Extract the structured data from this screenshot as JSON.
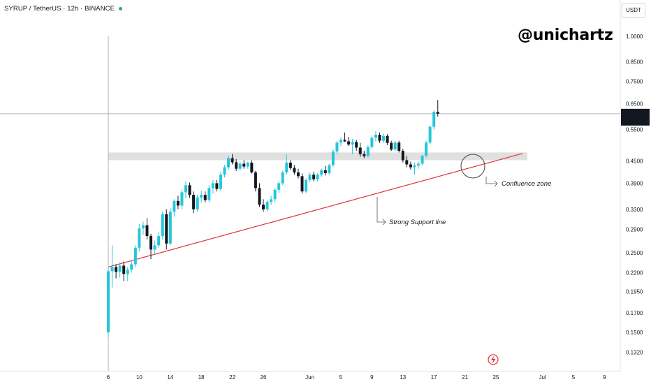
{
  "header": {
    "symbol": "SYRUP / TetherUS · 12h · BINANCE",
    "status_color": "#26a69a"
  },
  "brand": "@unichartz",
  "price_axis": {
    "unit": "USDT"
  },
  "colors": {
    "up": "#26c6da",
    "down": "#131722",
    "support": "#e0323c",
    "zone": "#d6d6d6",
    "crosshair": "#9aa0a6"
  },
  "last_price": {
    "value": "0.6088",
    "timer": "08:32:28"
  },
  "annotations": {
    "support_label": "Strong Support line",
    "confluence_label": "Confluence zone"
  },
  "chart_data": {
    "type": "candlestick",
    "title": "SYRUP / TetherUS · 12h · BINANCE",
    "y_scale": "log",
    "ylim": [
      0.125,
      1.08
    ],
    "y_ticks": [
      1.0,
      0.85,
      0.75,
      0.65,
      0.55,
      0.45,
      0.39,
      0.33,
      0.29,
      0.25,
      0.22,
      0.195,
      0.17,
      0.15,
      0.132
    ],
    "y_tick_labels": [
      "1.0000",
      "0.8500",
      "0.7500",
      "0.6500",
      "0.5500",
      "0.4500",
      "0.3900",
      "0.3300",
      "0.2900",
      "0.2500",
      "0.2200",
      "0.1950",
      "0.1700",
      "0.1500",
      "0.1320"
    ],
    "x_ticks": [
      {
        "label": "6",
        "index": 0
      },
      {
        "label": "10",
        "index": 8
      },
      {
        "label": "14",
        "index": 16
      },
      {
        "label": "18",
        "index": 24
      },
      {
        "label": "22",
        "index": 32
      },
      {
        "label": "26",
        "index": 40
      },
      {
        "label": "Jun",
        "index": 52
      },
      {
        "label": "5",
        "index": 60
      },
      {
        "label": "9",
        "index": 68
      },
      {
        "label": "13",
        "index": 76
      },
      {
        "label": "17",
        "index": 84
      },
      {
        "label": "21",
        "index": 92
      },
      {
        "label": "25",
        "index": 100
      },
      {
        "label": "Jul",
        "index": 112
      },
      {
        "label": "5",
        "index": 120
      },
      {
        "label": "9",
        "index": 128
      }
    ],
    "candles": [
      [
        0.15,
        0.225,
        0.145,
        0.222
      ],
      [
        0.222,
        0.262,
        0.2,
        0.228
      ],
      [
        0.228,
        0.232,
        0.212,
        0.221
      ],
      [
        0.221,
        0.235,
        0.213,
        0.23
      ],
      [
        0.23,
        0.236,
        0.208,
        0.218
      ],
      [
        0.218,
        0.228,
        0.208,
        0.224
      ],
      [
        0.224,
        0.238,
        0.22,
        0.232
      ],
      [
        0.232,
        0.262,
        0.228,
        0.258
      ],
      [
        0.258,
        0.3,
        0.252,
        0.292
      ],
      [
        0.292,
        0.305,
        0.28,
        0.298
      ],
      [
        0.298,
        0.312,
        0.272,
        0.278
      ],
      [
        0.278,
        0.282,
        0.24,
        0.255
      ],
      [
        0.255,
        0.27,
        0.248,
        0.262
      ],
      [
        0.262,
        0.285,
        0.258,
        0.278
      ],
      [
        0.278,
        0.325,
        0.272,
        0.32
      ],
      [
        0.32,
        0.33,
        0.255,
        0.265
      ],
      [
        0.265,
        0.332,
        0.262,
        0.325
      ],
      [
        0.325,
        0.352,
        0.315,
        0.348
      ],
      [
        0.348,
        0.36,
        0.33,
        0.338
      ],
      [
        0.338,
        0.375,
        0.33,
        0.368
      ],
      [
        0.368,
        0.395,
        0.355,
        0.385
      ],
      [
        0.385,
        0.392,
        0.355,
        0.362
      ],
      [
        0.362,
        0.37,
        0.322,
        0.33
      ],
      [
        0.33,
        0.362,
        0.325,
        0.356
      ],
      [
        0.356,
        0.372,
        0.345,
        0.362
      ],
      [
        0.362,
        0.37,
        0.345,
        0.35
      ],
      [
        0.35,
        0.385,
        0.345,
        0.378
      ],
      [
        0.378,
        0.398,
        0.365,
        0.39
      ],
      [
        0.39,
        0.398,
        0.37,
        0.376
      ],
      [
        0.376,
        0.42,
        0.372,
        0.412
      ],
      [
        0.412,
        0.438,
        0.405,
        0.432
      ],
      [
        0.432,
        0.465,
        0.425,
        0.458
      ],
      [
        0.458,
        0.47,
        0.44,
        0.446
      ],
      [
        0.446,
        0.455,
        0.422,
        0.428
      ],
      [
        0.428,
        0.448,
        0.422,
        0.442
      ],
      [
        0.442,
        0.452,
        0.428,
        0.434
      ],
      [
        0.434,
        0.448,
        0.428,
        0.445
      ],
      [
        0.445,
        0.452,
        0.415,
        0.418
      ],
      [
        0.418,
        0.422,
        0.37,
        0.378
      ],
      [
        0.378,
        0.39,
        0.335,
        0.34
      ],
      [
        0.34,
        0.352,
        0.325,
        0.33
      ],
      [
        0.33,
        0.35,
        0.326,
        0.346
      ],
      [
        0.346,
        0.36,
        0.34,
        0.352
      ],
      [
        0.352,
        0.378,
        0.345,
        0.374
      ],
      [
        0.374,
        0.395,
        0.366,
        0.39
      ],
      [
        0.39,
        0.422,
        0.385,
        0.418
      ],
      [
        0.418,
        0.47,
        0.412,
        0.445
      ],
      [
        0.445,
        0.452,
        0.425,
        0.43
      ],
      [
        0.43,
        0.438,
        0.412,
        0.418
      ],
      [
        0.418,
        0.428,
        0.402,
        0.408
      ],
      [
        0.408,
        0.415,
        0.365,
        0.37
      ],
      [
        0.37,
        0.402,
        0.366,
        0.398
      ],
      [
        0.398,
        0.418,
        0.392,
        0.412
      ],
      [
        0.412,
        0.42,
        0.395,
        0.4
      ],
      [
        0.4,
        0.416,
        0.394,
        0.412
      ],
      [
        0.412,
        0.428,
        0.406,
        0.424
      ],
      [
        0.424,
        0.436,
        0.41,
        0.416
      ],
      [
        0.416,
        0.442,
        0.412,
        0.438
      ],
      [
        0.438,
        0.485,
        0.432,
        0.478
      ],
      [
        0.478,
        0.512,
        0.47,
        0.506
      ],
      [
        0.506,
        0.522,
        0.495,
        0.515
      ],
      [
        0.515,
        0.54,
        0.508,
        0.51
      ],
      [
        0.51,
        0.525,
        0.495,
        0.5
      ],
      [
        0.5,
        0.518,
        0.47,
        0.508
      ],
      [
        0.508,
        0.515,
        0.48,
        0.49
      ],
      [
        0.49,
        0.505,
        0.462,
        0.47
      ],
      [
        0.47,
        0.48,
        0.458,
        0.464
      ],
      [
        0.464,
        0.498,
        0.46,
        0.492
      ],
      [
        0.492,
        0.53,
        0.486,
        0.522
      ],
      [
        0.522,
        0.545,
        0.51,
        0.532
      ],
      [
        0.532,
        0.54,
        0.505,
        0.512
      ],
      [
        0.512,
        0.536,
        0.505,
        0.528
      ],
      [
        0.528,
        0.534,
        0.498,
        0.505
      ],
      [
        0.505,
        0.512,
        0.48,
        0.484
      ],
      [
        0.484,
        0.512,
        0.478,
        0.506
      ],
      [
        0.506,
        0.512,
        0.475,
        0.48
      ],
      [
        0.48,
        0.486,
        0.446,
        0.452
      ],
      [
        0.452,
        0.464,
        0.432,
        0.44
      ],
      [
        0.44,
        0.448,
        0.426,
        0.432
      ],
      [
        0.432,
        0.446,
        0.412,
        0.437
      ],
      [
        0.437,
        0.448,
        0.428,
        0.442
      ],
      [
        0.442,
        0.468,
        0.438,
        0.465
      ],
      [
        0.465,
        0.512,
        0.46,
        0.506
      ],
      [
        0.506,
        0.565,
        0.5,
        0.56
      ],
      [
        0.56,
        0.622,
        0.55,
        0.616
      ],
      [
        0.616,
        0.665,
        0.598,
        0.609
      ]
    ]
  }
}
